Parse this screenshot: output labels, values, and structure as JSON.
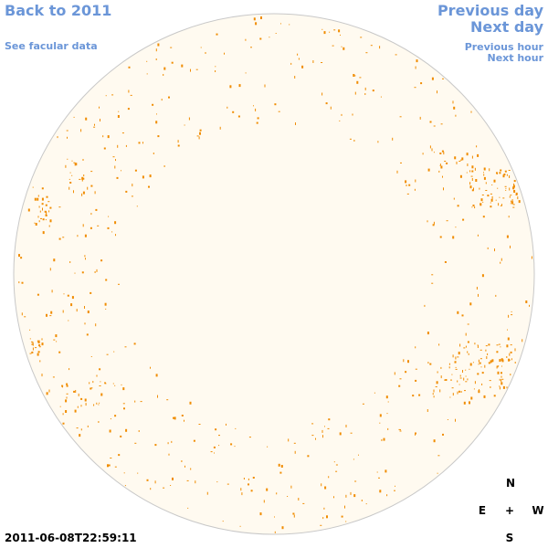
{
  "nav": {
    "back_label": "Back to 2011",
    "facular_label": "See facular data",
    "prev_day_label": "Previous day",
    "next_day_label": "Next day",
    "prev_hour_label": "Previous hour",
    "next_hour_label": "Next hour"
  },
  "timestamp": "2011-06-08T22:59:11",
  "compass": {
    "north": "N",
    "south": "S",
    "east": "E",
    "west": "W",
    "center": "+"
  },
  "colors": {
    "link": "#6b96d8",
    "disk_fill": "#fffaf0",
    "disk_outline": "#c8c8c8",
    "feature": "#f08c00"
  }
}
